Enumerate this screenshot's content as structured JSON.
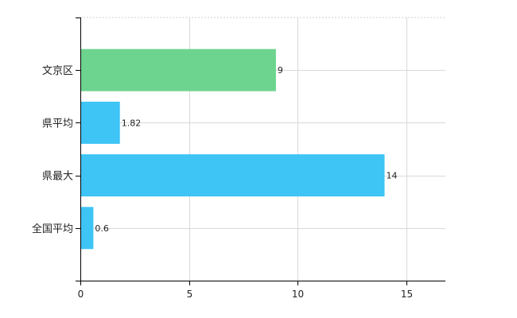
{
  "chart_data": {
    "type": "bar",
    "orientation": "horizontal",
    "categories": [
      "文京区",
      "県平均",
      "県最大",
      "全国平均"
    ],
    "values": [
      9,
      1.82,
      14,
      0.6
    ],
    "data_labels": [
      "9",
      "1.82",
      "14",
      "0.6"
    ],
    "bar_colors": [
      "#6dd48f",
      "#3ec4f5",
      "#3ec4f5",
      "#3ec4f5"
    ],
    "x_ticks": [
      0,
      5,
      10,
      15
    ],
    "xlim": [
      0,
      16.8
    ],
    "grid": true,
    "title": "",
    "xlabel": "",
    "ylabel": ""
  }
}
